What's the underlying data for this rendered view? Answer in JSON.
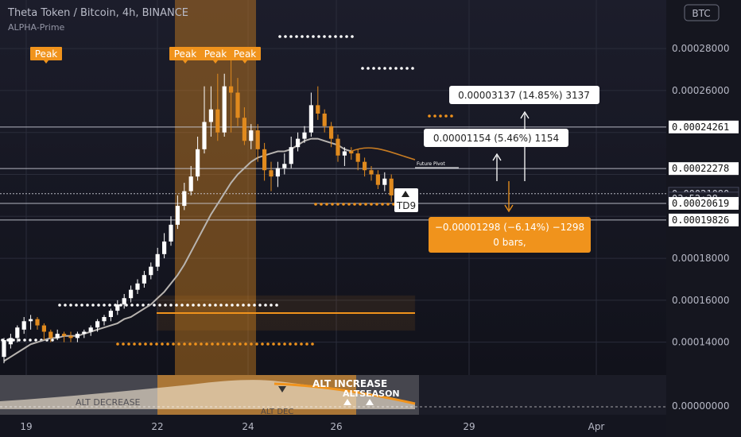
{
  "header": {
    "title": "Theta Token / Bitcoin, 4h, BINANCE",
    "indicator": "ALPHA-Prime",
    "currency_badge": "BTC"
  },
  "colors": {
    "up": "#ffffff",
    "down": "#e08a1e",
    "orange": "#f0931c",
    "sma": "#b8b4b0",
    "grid": "#2a2c3a",
    "background": "#14151f"
  },
  "chart_data": {
    "type": "candlestick",
    "ylim": [
      0.000127,
      0.000288
    ],
    "y_ticks": [
      "0.00014000",
      "0.00016000",
      "0.00018000",
      "0.00026000",
      "0.00028000"
    ],
    "x_ticks": [
      "19",
      "22",
      "24",
      "26",
      "29",
      "Apr"
    ],
    "candles": [
      [
        0.000133,
        0.000141,
        0.00013,
        0.000142
      ],
      [
        0.000139,
        0.000142,
        0.000137,
        0.000144
      ],
      [
        0.000142,
        0.000147,
        0.00014,
        0.000148
      ],
      [
        0.000146,
        0.00015,
        0.000144,
        0.000152
      ],
      [
        0.00015,
        0.000151,
        0.000146,
        0.000153
      ],
      [
        0.000151,
        0.000148,
        0.000146,
        0.000152
      ],
      [
        0.000148,
        0.000145,
        0.000141,
        0.000149
      ],
      [
        0.000145,
        0.000142,
        0.00014,
        0.000146
      ],
      [
        0.000142,
        0.000144,
        0.000141,
        0.000146
      ],
      [
        0.000144,
        0.000143,
        0.00014,
        0.000145
      ],
      [
        0.000143,
        0.000142,
        0.00014,
        0.000145
      ],
      [
        0.000142,
        0.000144,
        0.00014,
        0.000145
      ],
      [
        0.000144,
        0.000145,
        0.000142,
        0.000146
      ],
      [
        0.000145,
        0.000147,
        0.000143,
        0.000148
      ],
      [
        0.000147,
        0.00015,
        0.000145,
        0.000151
      ],
      [
        0.00015,
        0.000152,
        0.000148,
        0.000153
      ],
      [
        0.000152,
        0.000155,
        0.00015,
        0.000156
      ],
      [
        0.000155,
        0.000158,
        0.000153,
        0.00016
      ],
      [
        0.000158,
        0.000161,
        0.000156,
        0.000163
      ],
      [
        0.000161,
        0.000165,
        0.000159,
        0.000167
      ],
      [
        0.000165,
        0.000168,
        0.000163,
        0.00017
      ],
      [
        0.000168,
        0.000172,
        0.000166,
        0.000174
      ],
      [
        0.000172,
        0.000176,
        0.00017,
        0.000178
      ],
      [
        0.000176,
        0.000182,
        0.000174,
        0.000185
      ],
      [
        0.000182,
        0.000188,
        0.00018,
        0.000192
      ],
      [
        0.000188,
        0.000196,
        0.000186,
        0.0002
      ],
      [
        0.000196,
        0.000205,
        0.000194,
        0.00021
      ],
      [
        0.000205,
        0.000212,
        0.000203,
        0.000216
      ],
      [
        0.000212,
        0.000219,
        0.00021,
        0.000224
      ],
      [
        0.000219,
        0.000232,
        0.000217,
        0.000238
      ],
      [
        0.000232,
        0.000245,
        0.00023,
        0.000262
      ],
      [
        0.000245,
        0.000251,
        0.000238,
        0.000262
      ],
      [
        0.000251,
        0.00024,
        0.000236,
        0.000268
      ],
      [
        0.00024,
        0.000262,
        0.000238,
        0.000268
      ],
      [
        0.000262,
        0.000259,
        0.00024,
        0.000276
      ],
      [
        0.000259,
        0.000247,
        0.000243,
        0.000266
      ],
      [
        0.000247,
        0.000236,
        0.000234,
        0.000252
      ],
      [
        0.000236,
        0.000241,
        0.000232,
        0.000244
      ],
      [
        0.000241,
        0.000232,
        0.000226,
        0.000244
      ],
      [
        0.000232,
        0.000222,
        0.000217,
        0.000235
      ],
      [
        0.000222,
        0.000219,
        0.000212,
        0.000226
      ],
      [
        0.000219,
        0.000223,
        0.000214,
        0.000226
      ],
      [
        0.000223,
        0.000225,
        0.00022,
        0.00023
      ],
      [
        0.000225,
        0.000233,
        0.000223,
        0.000238
      ],
      [
        0.000233,
        0.000237,
        0.000231,
        0.00024
      ],
      [
        0.000237,
        0.00024,
        0.000235,
        0.000243
      ],
      [
        0.00024,
        0.000253,
        0.000238,
        0.000259
      ],
      [
        0.000253,
        0.000249,
        0.000246,
        0.000262
      ],
      [
        0.000249,
        0.000243,
        0.00024,
        0.000251
      ],
      [
        0.000243,
        0.000237,
        0.000233,
        0.000245
      ],
      [
        0.000237,
        0.000229,
        0.000226,
        0.000239
      ],
      [
        0.000229,
        0.000231,
        0.000224,
        0.000233
      ],
      [
        0.000231,
        0.00023,
        0.000227,
        0.000233
      ],
      [
        0.00023,
        0.000226,
        0.000222,
        0.000232
      ],
      [
        0.000226,
        0.000222,
        0.000219,
        0.000228
      ],
      [
        0.000222,
        0.00022,
        0.000217,
        0.000224
      ],
      [
        0.00022,
        0.000215,
        0.000213,
        0.000222
      ],
      [
        0.000215,
        0.000218,
        0.000212,
        0.000221
      ],
      [
        0.000218,
        0.00021,
        0.000207,
        0.00022
      ]
    ],
    "sma": [
      0.000131,
      0.000133,
      0.000135,
      0.000137,
      0.000139,
      0.00014,
      0.000141,
      0.000142,
      0.000142,
      0.000143,
      0.000143,
      0.000143,
      0.000144,
      0.000145,
      0.000146,
      0.000147,
      0.000148,
      0.000149,
      0.000151,
      0.000152,
      0.000154,
      0.000156,
      0.000158,
      0.000161,
      0.000164,
      0.000168,
      0.000172,
      0.000177,
      0.000183,
      0.000189,
      0.000195,
      0.000201,
      0.000206,
      0.000211,
      0.000216,
      0.00022,
      0.000223,
      0.000226,
      0.000228,
      0.000229,
      0.00023,
      0.000231,
      0.000231,
      0.000232,
      0.000234,
      0.000236,
      0.000237,
      0.000237,
      0.000236,
      0.000235,
      0.000234,
      0.000232,
      0.000231
    ],
    "horizontal_lines": [
      0.00024261,
      0.00022278,
      0.0002108,
      0.00020619,
      0.00019826
    ],
    "price_labels": [
      {
        "text": "0.00024261",
        "style": "white",
        "value": 0.00024261
      },
      {
        "text": "0.00022278",
        "style": "white",
        "value": 0.00022278
      },
      {
        "text": "0.00021080",
        "style": "dark",
        "value": 0.0002108
      },
      {
        "text": "03:52:28",
        "style": "dark",
        "value": 0.0002085
      },
      {
        "text": "0.00020619",
        "style": "white",
        "value": 0.00020619
      },
      {
        "text": "0.00019826",
        "style": "white",
        "value": 0.00019826
      }
    ],
    "peaks": [
      "Peak",
      "Peak",
      "Peak",
      "Peak"
    ],
    "annotations": {
      "future_pivot": "Future Pivot",
      "td9": "TD9",
      "measure_up_large": "0.00003137 (14.85%) 3137",
      "measure_up_small": "0.00001154 (5.46%) 1154",
      "measure_down_line1": "−0.00001298 (−6.14%) −1298",
      "measure_down_line2": "0 bars,"
    },
    "sub_indicator": {
      "zero_label": "0.00000000",
      "labels": [
        "ALT INCREASE",
        "ALTSEASON",
        "ALT DECREASE",
        "ALT DEC"
      ]
    }
  }
}
